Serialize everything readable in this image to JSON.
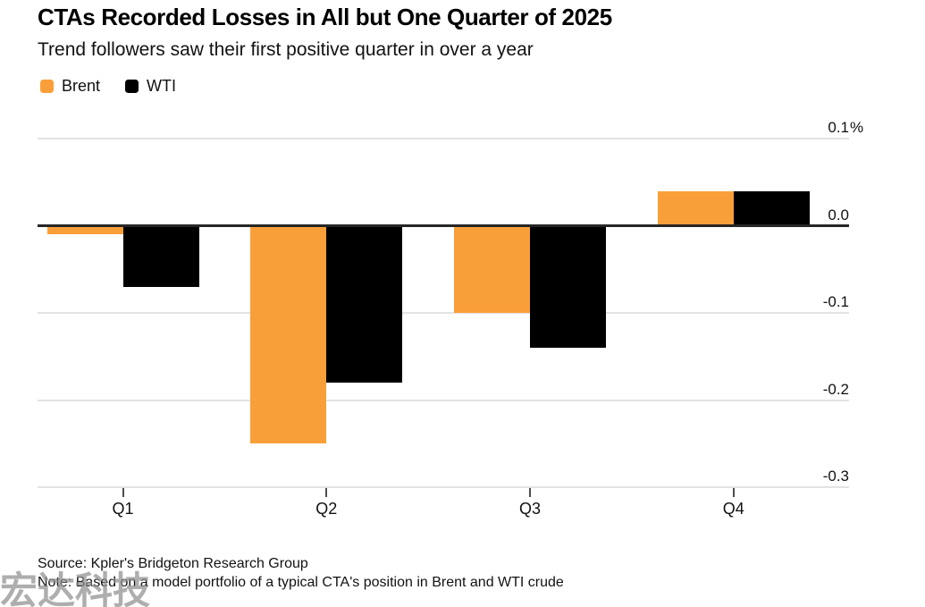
{
  "header": {
    "title": "CTAs Recorded Losses in All but One Quarter of 2025",
    "subtitle": "Trend followers saw their first positive quarter in over a year"
  },
  "chart_data": {
    "type": "bar",
    "title": "CTAs Recorded Losses in All but One Quarter of 2025",
    "subtitle": "Trend followers saw their first positive quarter in over a year",
    "categories": [
      "Q1",
      "Q2",
      "Q3",
      "Q4"
    ],
    "series": [
      {
        "name": "Brent",
        "color": "#F99F39",
        "values": [
          -0.01,
          -0.25,
          -0.1,
          0.04
        ]
      },
      {
        "name": "WTI",
        "color": "#000000",
        "values": [
          -0.07,
          -0.18,
          -0.14,
          0.04
        ]
      }
    ],
    "xlabel": "",
    "ylabel": "",
    "y_unit": "%",
    "ylim": [
      -0.3,
      0.1
    ],
    "y_ticks": [
      {
        "label": "0.1",
        "suffix": "%",
        "value": 0.1
      },
      {
        "label": "0.0",
        "suffix": "",
        "value": 0.0
      },
      {
        "label": "-0.1",
        "suffix": "",
        "value": -0.1
      },
      {
        "label": "-0.2",
        "suffix": "",
        "value": -0.2
      },
      {
        "label": "-0.3",
        "suffix": "",
        "value": -0.3
      }
    ],
    "grid": "horizontal",
    "legend_position": "top-left",
    "y_labels_side": "right"
  },
  "footer": {
    "source": "Source: Kpler's Bridgeton Research Group",
    "note": "Note: Based on a model portfolio of a typical CTA's position in Brent and WTI crude"
  },
  "watermark": "宏达科技"
}
